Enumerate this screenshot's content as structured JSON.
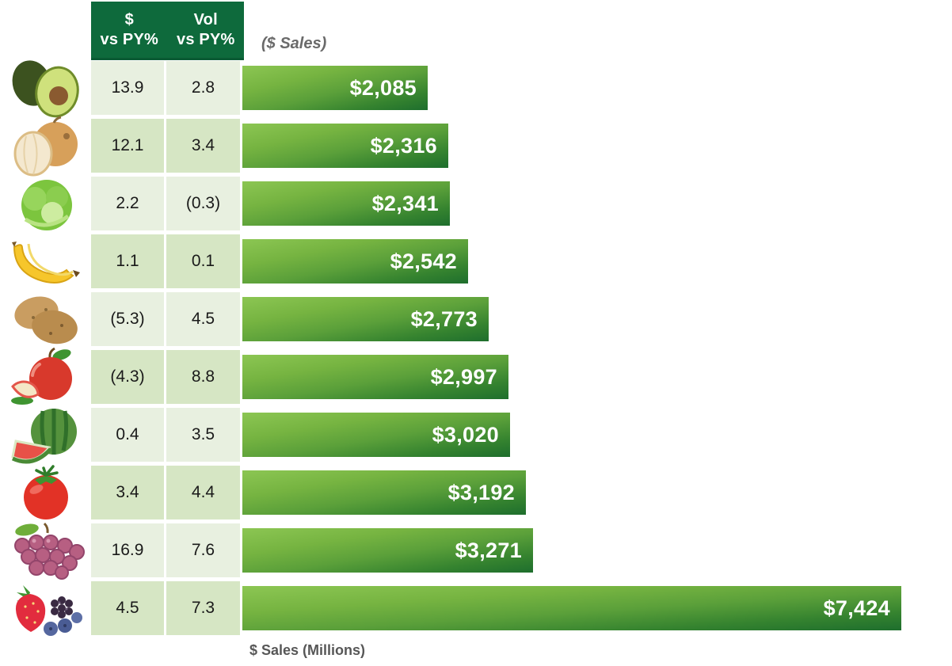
{
  "header": {
    "col1_line1": "$",
    "col1_line2": "vs PY%",
    "col2_line1": "Vol",
    "col2_line2": "vs PY%",
    "axis_label": "($ Sales)"
  },
  "footer": {
    "axis_label": "$ Sales (Millions)"
  },
  "colors": {
    "header_green": "#0e6a3c",
    "header_green_dark": "#0a5a33",
    "row_light": "#e8f0e0",
    "row_dark": "#d6e6c4",
    "bar_gradient_light": "#8cc653",
    "bar_gradient_dark": "#1e6e2d",
    "bar_label_white": "#ffffff",
    "table_text": "#1a1a1a",
    "axis_label_gray": "#6a6a6a",
    "footer_label_gray": "#575757"
  },
  "chart_data": {
    "type": "bar",
    "orientation": "horizontal",
    "title": "($ Sales)",
    "xlabel": "$ Sales (Millions)",
    "xlim": [
      0,
      7424
    ],
    "grid": false,
    "legend_position": "none",
    "categories": [
      "avocado",
      "onion",
      "lettuce",
      "banana",
      "potato",
      "apple",
      "watermelon",
      "tomato",
      "grapes",
      "berries"
    ],
    "series": [
      {
        "name": "$ Sales (Millions)",
        "values": [
          2085,
          2316,
          2341,
          2542,
          2773,
          2997,
          3020,
          3192,
          3271,
          7424
        ]
      },
      {
        "name": "$ vs PY%",
        "values": [
          13.9,
          12.1,
          2.2,
          1.1,
          -5.3,
          -4.3,
          0.4,
          3.4,
          16.9,
          4.5
        ]
      },
      {
        "name": "Vol vs PY%",
        "values": [
          2.8,
          3.4,
          -0.3,
          0.1,
          4.5,
          8.8,
          3.5,
          4.4,
          7.6,
          7.3
        ]
      }
    ],
    "data_labels": [
      "$2,085",
      "$2,316",
      "$2,341",
      "$2,542",
      "$2,773",
      "$2,997",
      "$3,020",
      "$3,192",
      "$3,271",
      "$7,424"
    ]
  },
  "rows": [
    {
      "icon": "avocado-icon",
      "dollar_vs_py": "13.9",
      "vol_vs_py": "2.8",
      "sales_label": "$2,085",
      "sales_value": 2085
    },
    {
      "icon": "onion-icon",
      "dollar_vs_py": "12.1",
      "vol_vs_py": "3.4",
      "sales_label": "$2,316",
      "sales_value": 2316
    },
    {
      "icon": "lettuce-icon",
      "dollar_vs_py": "2.2",
      "vol_vs_py": "(0.3)",
      "sales_label": "$2,341",
      "sales_value": 2341
    },
    {
      "icon": "banana-icon",
      "dollar_vs_py": "1.1",
      "vol_vs_py": "0.1",
      "sales_label": "$2,542",
      "sales_value": 2542
    },
    {
      "icon": "potato-icon",
      "dollar_vs_py": "(5.3)",
      "vol_vs_py": "4.5",
      "sales_label": "$2,773",
      "sales_value": 2773
    },
    {
      "icon": "apple-icon",
      "dollar_vs_py": "(4.3)",
      "vol_vs_py": "8.8",
      "sales_label": "$2,997",
      "sales_value": 2997
    },
    {
      "icon": "watermelon-icon",
      "dollar_vs_py": "0.4",
      "vol_vs_py": "3.5",
      "sales_label": "$3,020",
      "sales_value": 3020
    },
    {
      "icon": "tomato-icon",
      "dollar_vs_py": "3.4",
      "vol_vs_py": "4.4",
      "sales_label": "$3,192",
      "sales_value": 3192
    },
    {
      "icon": "grapes-icon",
      "dollar_vs_py": "16.9",
      "vol_vs_py": "7.6",
      "sales_label": "$3,271",
      "sales_value": 3271
    },
    {
      "icon": "berries-icon",
      "dollar_vs_py": "4.5",
      "vol_vs_py": "7.3",
      "sales_label": "$7,424",
      "sales_value": 7424
    }
  ]
}
